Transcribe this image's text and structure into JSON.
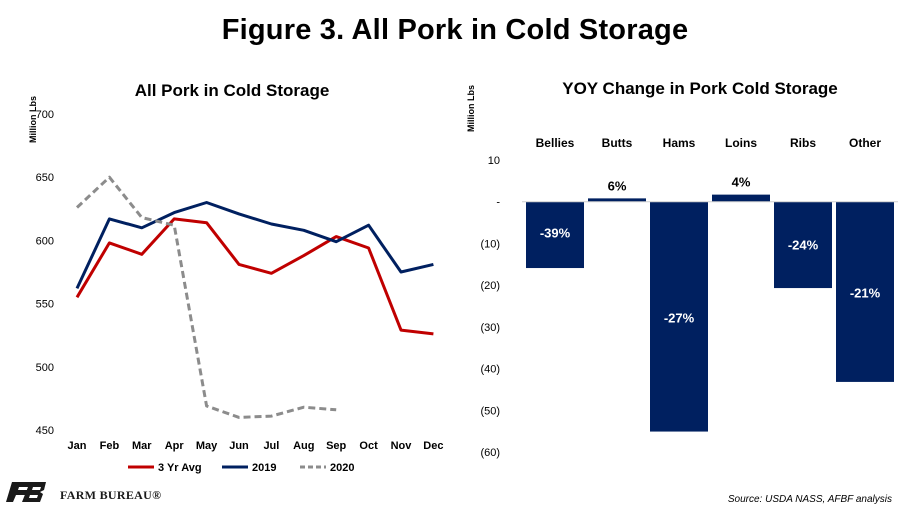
{
  "figure_title": "Figure 3. All Pork in Cold Storage",
  "brand": {
    "logo_text": "FARM BUREAU®",
    "colors": {
      "logo": "#1a1a1a",
      "red": "#c00000",
      "navy": "#002060",
      "gray": "#8c8c8c"
    }
  },
  "source": "Source:  USDA NASS, AFBF analysis",
  "chart_data": [
    {
      "type": "line",
      "title": "All Pork in Cold Storage",
      "ylabel": "Million Lbs",
      "ylim": [
        450,
        700
      ],
      "yticks": [
        450,
        500,
        550,
        600,
        650,
        700
      ],
      "categories": [
        "Jan",
        "Feb",
        "Mar",
        "Apr",
        "May",
        "Jun",
        "Jul",
        "Aug",
        "Sep",
        "Oct",
        "Nov",
        "Dec"
      ],
      "grid": false,
      "legend_position": "bottom",
      "series": [
        {
          "name": "3 Yr Avg",
          "color": "#c00000",
          "style": "solid",
          "values": [
            555,
            598,
            589,
            617,
            614,
            581,
            574,
            588,
            603,
            594,
            529,
            526
          ]
        },
        {
          "name": "2019",
          "color": "#002060",
          "style": "solid",
          "values": [
            562,
            617,
            610,
            622,
            630,
            621,
            613,
            608,
            599,
            612,
            575,
            581
          ]
        },
        {
          "name": "2020",
          "color": "#8c8c8c",
          "style": "dashed",
          "values": [
            626,
            650,
            618,
            612,
            469,
            460,
            461,
            468,
            466,
            null,
            null,
            null
          ]
        }
      ]
    },
    {
      "type": "bar",
      "title": "YOY Change in Pork Cold Storage",
      "ylabel": "Million Lbs",
      "ylim": [
        -60,
        10
      ],
      "yticks": [
        10,
        0,
        -10,
        -20,
        -30,
        -40,
        -50,
        -60
      ],
      "ytick_labels": [
        "10",
        "-",
        "(10)",
        "(20)",
        "(30)",
        "(40)",
        "(50)",
        "(60)"
      ],
      "categories": [
        "Bellies",
        "Butts",
        "Hams",
        "Loins",
        "Ribs",
        "Other"
      ],
      "values": [
        -15.9,
        0.8,
        -55.1,
        1.7,
        -20.7,
        -43.2
      ],
      "data_labels": [
        "-39%",
        "6%",
        "-27%",
        "4%",
        "-24%",
        "-21%"
      ],
      "color": "#002060"
    }
  ]
}
